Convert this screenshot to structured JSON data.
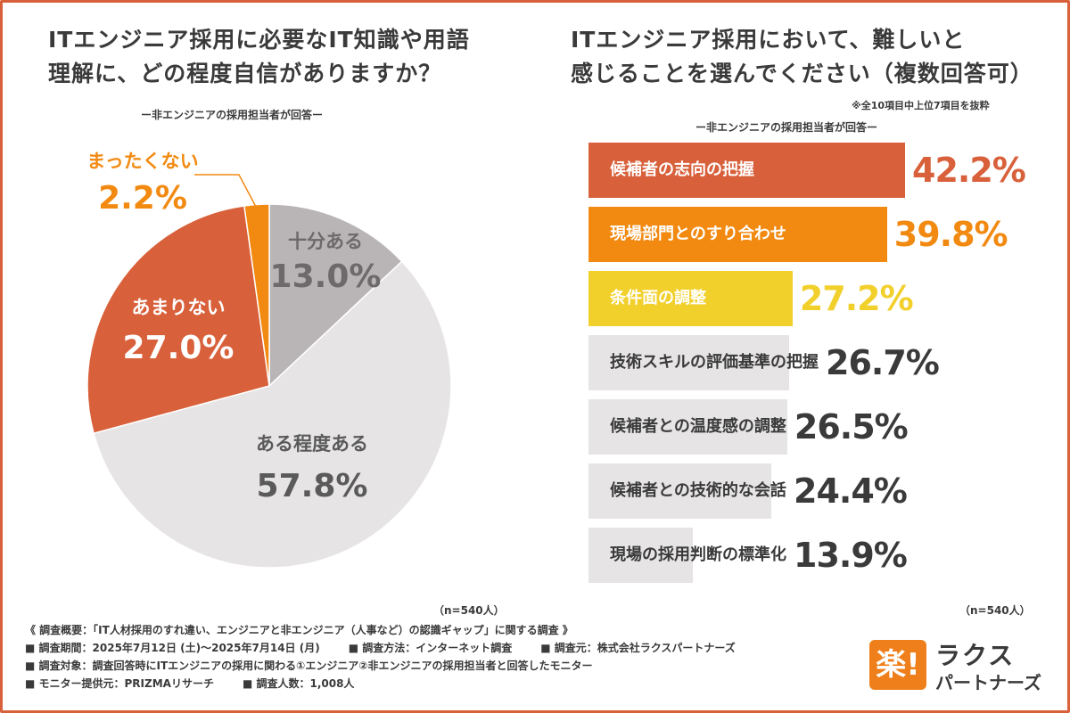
{
  "chart_data": [
    {
      "type": "pie",
      "title": "ITエンジニア採用に必要なIT知識や用語理解に、どの程度自信がありますか？",
      "title_lines": [
        "ITエンジニア採用に必要なIT知識や用語",
        "理解に、どの程度自信がありますか？"
      ],
      "subtitle": "ー非エンジニアの採用担当者が回答ー",
      "n_label": "（n=540人）",
      "slices": [
        {
          "label": "十分ある",
          "value": 13.0,
          "display": "13.0%",
          "color": "#b9b5b6",
          "text_color": "#6e6a6b"
        },
        {
          "label": "ある程度ある",
          "value": 57.8,
          "display": "57.8%",
          "color": "#e6e4e5",
          "text_color": "#5a5a5a"
        },
        {
          "label": "あまりない",
          "value": 27.0,
          "display": "27.0%",
          "color": "#d8603a",
          "text_color": "#ffffff"
        },
        {
          "label": "まったくない",
          "value": 2.2,
          "display": "2.2%",
          "color": "#f28a12",
          "text_color": "#f28a12"
        }
      ]
    },
    {
      "type": "bar",
      "title": "ITエンジニア採用において、難しいと感じることを選んでください（複数回答可）",
      "title_lines": [
        "ITエンジニア採用において、難しいと",
        "感じることを選んでください（複数回答可）"
      ],
      "note": "※全10項目中上位7項目を抜粋",
      "subtitle": "ー非エンジニアの採用担当者が回答ー",
      "n_label": "（n=540人）",
      "xlim": [
        0,
        42.2
      ],
      "categories": [
        "候補者の志向の把握",
        "現場部門とのすり合わせ",
        "条件面の調整",
        "技術スキルの評価基準の把握",
        "候補者との温度感の調整",
        "候補者との技術的な会話",
        "現場の採用判断の標準化"
      ],
      "values": [
        42.2,
        39.8,
        27.2,
        26.7,
        26.5,
        24.4,
        13.9
      ],
      "display": [
        "42.2%",
        "39.8%",
        "27.2%",
        "26.7%",
        "26.5%",
        "24.4%",
        "13.9%"
      ],
      "bar_colors": [
        "#d8603a",
        "#f28a12",
        "#f2d02c",
        "#e6e4e5",
        "#e6e4e5",
        "#e6e4e5",
        "#e6e4e5"
      ],
      "label_colors": [
        "#ffffff",
        "#ffffff",
        "#ffffff",
        "#3a3a3a",
        "#3a3a3a",
        "#3a3a3a",
        "#3a3a3a"
      ],
      "value_colors": [
        "#d8603a",
        "#f28a12",
        "#f2d02c",
        "#3a3a3a",
        "#3a3a3a",
        "#3a3a3a",
        "#3a3a3a"
      ]
    }
  ],
  "footer": {
    "overview": "《 調査概要：「IT人材採用のすれ違い、エンジニアと非エンジニア（人事など）の認識ギャップ」に関する調査 》",
    "period": "■ 調査期間：2025年7月12日 (土)〜2025年7月14日 (月)",
    "method": "■ 調査方法：インターネット調査",
    "organizer": "■ 調査元：株式会社ラクスパートナーズ",
    "target": "■ 調査対象：調査回答時にITエンジニアの採用に関わる①エンジニア②非エンジニアの採用担当者と回答したモニター",
    "provider": "■ モニター提供元：PRIZMAリサーチ",
    "count": "■ 調査人数：1,008人"
  },
  "logo": {
    "mark": "楽!",
    "name": "ラクス",
    "sub": "パートナーズ",
    "color": "#ef7f1a"
  }
}
